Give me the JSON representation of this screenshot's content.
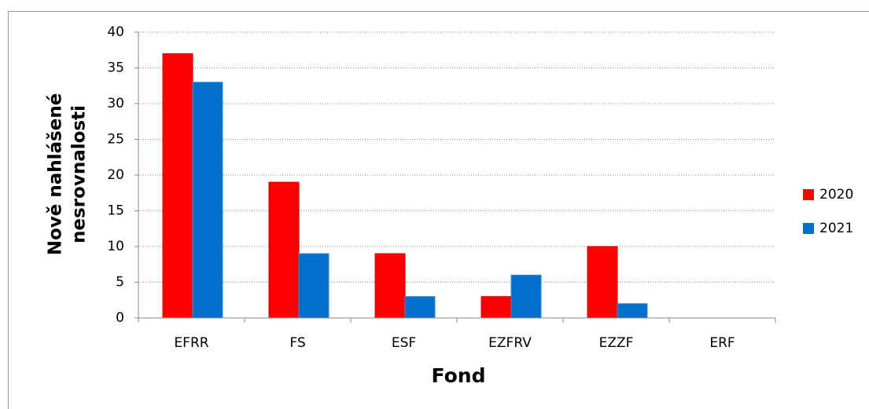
{
  "chart_data": {
    "type": "bar",
    "categories": [
      "EFRR",
      "FS",
      "ESF",
      "EZFRV",
      "EZZF",
      "ERF"
    ],
    "series": [
      {
        "name": "2020",
        "color": "#ff0000",
        "values": [
          37,
          19,
          9,
          3,
          10,
          0
        ]
      },
      {
        "name": "2021",
        "color": "#0070cc",
        "values": [
          33,
          9,
          3,
          6,
          2,
          0
        ]
      }
    ],
    "x_label": "Fond",
    "y_label": [
      "Nově nahlášené",
      "nesrovnalosti"
    ],
    "ylim": [
      0,
      40
    ],
    "yticks": [
      0,
      5,
      10,
      15,
      20,
      25,
      30,
      35,
      40
    ],
    "grid": true,
    "legend": "right"
  }
}
